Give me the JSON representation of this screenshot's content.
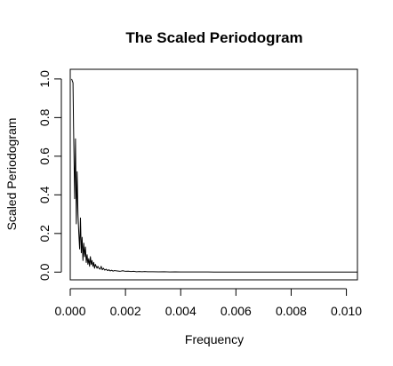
{
  "chart_data": {
    "type": "line",
    "title": "The Scaled Periodogram",
    "xlabel": "Frequency",
    "ylabel": "Scaled Periodogram",
    "xlim": [
      0,
      0.0104
    ],
    "ylim": [
      -0.04,
      1.05
    ],
    "xticks": [
      0,
      0.002,
      0.004,
      0.006,
      0.008,
      0.01
    ],
    "xtick_labels": [
      "0.000",
      "0.002",
      "0.004",
      "0.006",
      "0.008",
      "0.010"
    ],
    "yticks": [
      0,
      0.2,
      0.4,
      0.6,
      0.8,
      1.0
    ],
    "ytick_labels": [
      "0.0",
      "0.2",
      "0.4",
      "0.6",
      "0.8",
      "1.0"
    ],
    "grid": false,
    "series": [
      {
        "color": "#000000",
        "x": [
          5e-05,
          0.0001,
          0.00012,
          0.00016,
          0.00019,
          0.00022,
          0.00025,
          0.00028,
          0.00031,
          0.00034,
          0.00037,
          0.0004,
          0.00043,
          0.00046,
          0.00049,
          0.00052,
          0.00055,
          0.00058,
          0.00061,
          0.00064,
          0.00067,
          0.0007,
          0.00073,
          0.00076,
          0.00079,
          0.00082,
          0.00085,
          0.00088,
          0.00091,
          0.00094,
          0.00097,
          0.001,
          0.00104,
          0.00108,
          0.00112,
          0.00116,
          0.0012,
          0.00125,
          0.0013,
          0.00135,
          0.0014,
          0.00145,
          0.0015,
          0.00155,
          0.0016,
          0.0017,
          0.0018,
          0.0019,
          0.002,
          0.0021,
          0.0022,
          0.0023,
          0.0024,
          0.0025,
          0.0026,
          0.0027,
          0.0028,
          0.003,
          0.0032,
          0.0034,
          0.0036,
          0.0038,
          0.004,
          0.0042,
          0.0044,
          0.0046,
          0.0048,
          0.005,
          0.0052,
          0.0054,
          0.006,
          0.007,
          0.008,
          0.009,
          0.01,
          0.0104
        ],
        "y": [
          1.0,
          0.98,
          0.75,
          0.38,
          0.69,
          0.25,
          0.52,
          0.3,
          0.2,
          0.12,
          0.28,
          0.1,
          0.18,
          0.06,
          0.15,
          0.08,
          0.13,
          0.05,
          0.09,
          0.04,
          0.07,
          0.03,
          0.08,
          0.04,
          0.06,
          0.03,
          0.05,
          0.02,
          0.04,
          0.03,
          0.02,
          0.03,
          0.02,
          0.015,
          0.03,
          0.012,
          0.02,
          0.01,
          0.015,
          0.008,
          0.012,
          0.006,
          0.01,
          0.005,
          0.008,
          0.006,
          0.004,
          0.007,
          0.004,
          0.005,
          0.003,
          0.004,
          0.002,
          0.003,
          0.002,
          0.003,
          0.002,
          0.002,
          0.0015,
          0.002,
          0.001,
          0.0015,
          0.001,
          0.001,
          0.0008,
          0.001,
          0.0006,
          0.0008,
          0.0005,
          0.0004,
          0.0003,
          0.0002,
          0.0002,
          0.0001,
          0.0001,
          0.0001
        ]
      }
    ]
  }
}
